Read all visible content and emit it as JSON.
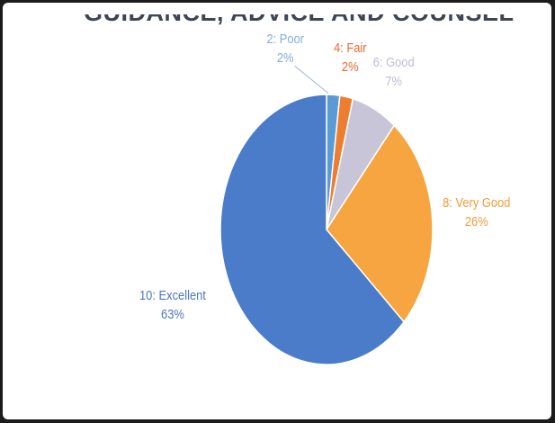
{
  "chart_data": {
    "type": "pie",
    "title": "GUIDANCE, ADVICE AND COUNSELLING",
    "start_angle_deg": 0,
    "direction": "clockwise",
    "slices": [
      {
        "label": "2: Poor",
        "value": 2,
        "value_label": "2%",
        "color": "#5b9bd5"
      },
      {
        "label": "4: Fair",
        "value": 2,
        "value_label": "2%",
        "color": "#ed7d31"
      },
      {
        "label": "6: Good",
        "value": 7,
        "value_label": "7%",
        "color": "#c9c5d8"
      },
      {
        "label": "8: Very Good",
        "value": 26,
        "value_label": "26%",
        "color": "#f7a541"
      },
      {
        "label": "10: Excellent",
        "value": 63,
        "value_label": "63%",
        "color": "#4a7cc9"
      }
    ],
    "label_colors": [
      "#82aee0",
      "#ec6a2c",
      "#c2bcd6",
      "#f29c36",
      "#4b78c4"
    ]
  }
}
